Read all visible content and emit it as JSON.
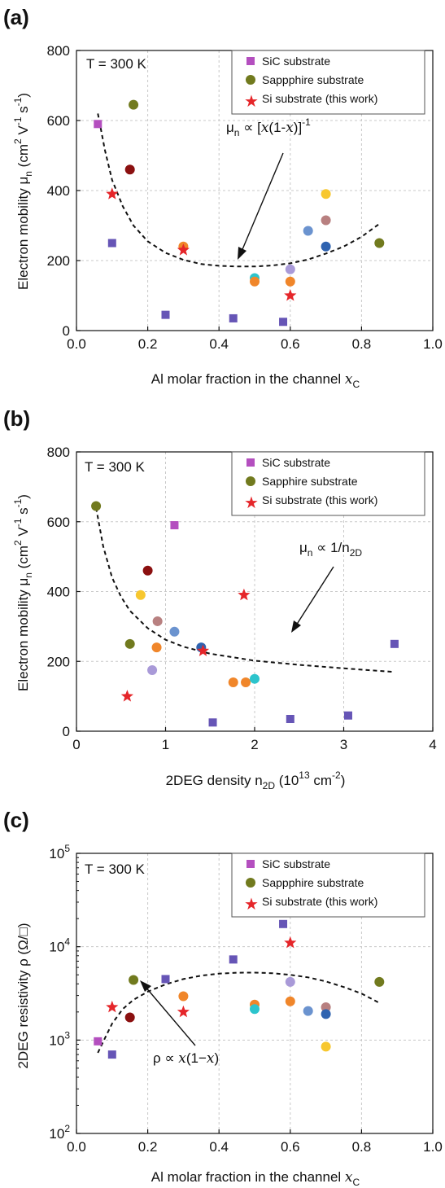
{
  "panels": [
    {
      "label": "(a)",
      "temperature": "T = 300 K",
      "ylabel_main": "Electron mobility μ",
      "ylabel_sub": "n",
      "ylabel_unit": " (cm",
      "ylabel_sup1": "2",
      "ylabel_mid": " V",
      "ylabel_sup2": "-1",
      "ylabel_mid2": " s",
      "ylabel_sup3": "-1",
      "ylabel_end": ")",
      "xlabel_main": "Al molar fraction in the channel ",
      "xlabel_var": "x",
      "xlabel_sub": "C",
      "legend": [
        "SiC substrate",
        "Sappphire substrate",
        "Si substrate (this work)"
      ],
      "annotation": "μ",
      "annotation_sub": "n",
      "annotation_rest": " ∝ [",
      "annotation_var": "x",
      "annotation_rest2": "(1-",
      "annotation_var2": "x",
      "annotation_rest3": ")]",
      "annotation_sup": "-1"
    },
    {
      "label": "(b)",
      "temperature": "T = 300 K",
      "ylabel_main": "Electron mobility μ",
      "ylabel_sub": "n",
      "ylabel_unit": " (cm",
      "ylabel_sup1": "2",
      "ylabel_mid": " V",
      "ylabel_sup2": "-1",
      "ylabel_mid2": " s",
      "ylabel_sup3": "-1",
      "ylabel_end": ")",
      "xlabel_main": "2DEG density n",
      "xlabel_sub": "2D",
      "xlabel_rest": " (10",
      "xlabel_sup": "13",
      "xlabel_rest2": " cm",
      "xlabel_sup2": "-2",
      "xlabel_end": ")",
      "legend": [
        "SiC substrate",
        "Sapphire substrate",
        "Si substrate (this work)"
      ],
      "annotation": "μ",
      "annotation_sub": "n",
      "annotation_rest": " ∝ 1/n",
      "annotation_sub2": "2D"
    },
    {
      "label": "(c)",
      "temperature": "T = 300 K",
      "ylabel_main": "2DEG resistivity ρ (Ω/□)",
      "xlabel_main": "Al molar fraction in the channel ",
      "xlabel_var": "x",
      "xlabel_sub": "C",
      "legend": [
        "SiC substrate",
        "Sappphire substrate",
        "Si substrate (this work)"
      ],
      "annotation": "ρ ∝ ",
      "annotation_var": "x",
      "annotation_rest": "(1−",
      "annotation_var2": "x",
      "annotation_rest2": ")"
    }
  ],
  "colors": {
    "sic": "#b44fbf",
    "sapphire": "#717a1e",
    "si": "#e5262a",
    "purple_sq": "#6655b6",
    "darkred": "#8b1010",
    "orange": "#f0862a",
    "teal": "#2cc4cc",
    "steelblue": "#6b93cf",
    "navy": "#2f63b0",
    "mauve": "#b88080",
    "gold": "#f7c72f",
    "lavender": "#a99ad8",
    "olive": "#717a1e"
  },
  "chart_data": [
    {
      "type": "scatter",
      "xlim": [
        0.0,
        1.0
      ],
      "ylim": [
        0,
        800
      ],
      "xticks": [
        "0.0",
        "0.2",
        "0.4",
        "0.6",
        "0.8",
        "1.0"
      ],
      "yticks": [
        "0",
        "200",
        "400",
        "600",
        "800"
      ],
      "xtick_values": [
        0.0,
        0.2,
        0.4,
        0.6,
        0.8,
        1.0
      ],
      "ytick_values": [
        0,
        200,
        400,
        600,
        800
      ],
      "grid": true,
      "legend_position": "top-right",
      "points": [
        {
          "x": 0.06,
          "y": 590,
          "shape": "square",
          "color": "sic"
        },
        {
          "x": 0.16,
          "y": 645,
          "shape": "circle",
          "color": "sapphire"
        },
        {
          "x": 0.15,
          "y": 460,
          "shape": "circle",
          "color": "darkred"
        },
        {
          "x": 0.1,
          "y": 390,
          "shape": "star",
          "color": "si"
        },
        {
          "x": 0.1,
          "y": 250,
          "shape": "square",
          "color": "purple_sq"
        },
        {
          "x": 0.3,
          "y": 240,
          "shape": "circle",
          "color": "orange"
        },
        {
          "x": 0.3,
          "y": 230,
          "shape": "star",
          "color": "si"
        },
        {
          "x": 0.25,
          "y": 45,
          "shape": "square",
          "color": "purple_sq"
        },
        {
          "x": 0.44,
          "y": 35,
          "shape": "square",
          "color": "purple_sq"
        },
        {
          "x": 0.58,
          "y": 25,
          "shape": "square",
          "color": "purple_sq"
        },
        {
          "x": 0.5,
          "y": 150,
          "shape": "circle",
          "color": "teal"
        },
        {
          "x": 0.5,
          "y": 140,
          "shape": "circle",
          "color": "orange"
        },
        {
          "x": 0.6,
          "y": 175,
          "shape": "circle",
          "color": "lavender"
        },
        {
          "x": 0.6,
          "y": 140,
          "shape": "circle",
          "color": "orange"
        },
        {
          "x": 0.6,
          "y": 100,
          "shape": "star",
          "color": "si"
        },
        {
          "x": 0.65,
          "y": 285,
          "shape": "circle",
          "color": "steelblue"
        },
        {
          "x": 0.7,
          "y": 390,
          "shape": "circle",
          "color": "gold"
        },
        {
          "x": 0.7,
          "y": 315,
          "shape": "circle",
          "color": "mauve"
        },
        {
          "x": 0.7,
          "y": 240,
          "shape": "circle",
          "color": "navy"
        },
        {
          "x": 0.85,
          "y": 250,
          "shape": "circle",
          "color": "olive"
        }
      ],
      "fit_curve": {
        "x": [
          0.06,
          0.08,
          0.1,
          0.13,
          0.16,
          0.2,
          0.25,
          0.3,
          0.35,
          0.4,
          0.45,
          0.5,
          0.55,
          0.6,
          0.65,
          0.7,
          0.75,
          0.8,
          0.85
        ],
        "y": [
          620,
          515,
          430,
          355,
          300,
          255,
          222,
          202,
          190,
          185,
          183,
          183,
          186,
          192,
          203,
          220,
          240,
          268,
          305
        ]
      }
    },
    {
      "type": "scatter",
      "xlim": [
        0,
        4
      ],
      "ylim": [
        0,
        800
      ],
      "xticks": [
        "0",
        "1",
        "2",
        "3",
        "4"
      ],
      "yticks": [
        "0",
        "200",
        "400",
        "600",
        "800"
      ],
      "xtick_values": [
        0,
        1,
        2,
        3,
        4
      ],
      "ytick_values": [
        0,
        200,
        400,
        600,
        800
      ],
      "grid": true,
      "legend_position": "top-right",
      "points": [
        {
          "x": 0.22,
          "y": 645,
          "shape": "circle",
          "color": "sapphire"
        },
        {
          "x": 1.1,
          "y": 590,
          "shape": "square",
          "color": "sic"
        },
        {
          "x": 0.8,
          "y": 460,
          "shape": "circle",
          "color": "darkred"
        },
        {
          "x": 0.72,
          "y": 390,
          "shape": "circle",
          "color": "gold"
        },
        {
          "x": 0.91,
          "y": 315,
          "shape": "circle",
          "color": "mauve"
        },
        {
          "x": 1.1,
          "y": 285,
          "shape": "circle",
          "color": "steelblue"
        },
        {
          "x": 0.6,
          "y": 250,
          "shape": "circle",
          "color": "olive"
        },
        {
          "x": 0.9,
          "y": 240,
          "shape": "circle",
          "color": "orange"
        },
        {
          "x": 1.4,
          "y": 240,
          "shape": "circle",
          "color": "navy"
        },
        {
          "x": 1.42,
          "y": 230,
          "shape": "star",
          "color": "si"
        },
        {
          "x": 1.88,
          "y": 390,
          "shape": "star",
          "color": "si"
        },
        {
          "x": 0.85,
          "y": 175,
          "shape": "circle",
          "color": "lavender"
        },
        {
          "x": 0.57,
          "y": 100,
          "shape": "star",
          "color": "si"
        },
        {
          "x": 1.76,
          "y": 140,
          "shape": "circle",
          "color": "orange"
        },
        {
          "x": 1.9,
          "y": 140,
          "shape": "circle",
          "color": "orange"
        },
        {
          "x": 2.0,
          "y": 150,
          "shape": "circle",
          "color": "teal"
        },
        {
          "x": 1.53,
          "y": 25,
          "shape": "square",
          "color": "purple_sq"
        },
        {
          "x": 2.4,
          "y": 35,
          "shape": "square",
          "color": "purple_sq"
        },
        {
          "x": 3.05,
          "y": 45,
          "shape": "square",
          "color": "purple_sq"
        },
        {
          "x": 3.57,
          "y": 250,
          "shape": "square",
          "color": "purple_sq"
        }
      ],
      "fit_curve": {
        "x": [
          0.22,
          0.3,
          0.4,
          0.5,
          0.6,
          0.8,
          1.0,
          1.2,
          1.5,
          2.0,
          2.5,
          3.0,
          3.55
        ],
        "y": [
          640,
          530,
          440,
          385,
          345,
          295,
          262,
          242,
          222,
          202,
          190,
          180,
          170
        ]
      }
    },
    {
      "type": "scatter",
      "xlim": [
        0.0,
        1.0
      ],
      "ylim": [
        100,
        100000
      ],
      "yscale": "log",
      "xticks": [
        "0.0",
        "0.2",
        "0.4",
        "0.6",
        "0.8",
        "1.0"
      ],
      "xtick_values": [
        0.0,
        0.2,
        0.4,
        0.6,
        0.8,
        1.0
      ],
      "ytick_values": [
        100,
        1000,
        10000,
        100000
      ],
      "ytick_base": "10",
      "ytick_exps": [
        "2",
        "3",
        "4",
        "5"
      ],
      "grid": true,
      "legend_position": "top-right",
      "points": [
        {
          "x": 0.06,
          "y": 970,
          "shape": "square",
          "color": "sic"
        },
        {
          "x": 0.1,
          "y": 700,
          "shape": "square",
          "color": "purple_sq"
        },
        {
          "x": 0.1,
          "y": 2250,
          "shape": "star",
          "color": "si"
        },
        {
          "x": 0.15,
          "y": 1750,
          "shape": "circle",
          "color": "darkred"
        },
        {
          "x": 0.16,
          "y": 4400,
          "shape": "circle",
          "color": "sapphire"
        },
        {
          "x": 0.25,
          "y": 4500,
          "shape": "square",
          "color": "purple_sq"
        },
        {
          "x": 0.3,
          "y": 2950,
          "shape": "circle",
          "color": "orange"
        },
        {
          "x": 0.3,
          "y": 2000,
          "shape": "star",
          "color": "si"
        },
        {
          "x": 0.44,
          "y": 7300,
          "shape": "square",
          "color": "purple_sq"
        },
        {
          "x": 0.5,
          "y": 2400,
          "shape": "circle",
          "color": "orange"
        },
        {
          "x": 0.5,
          "y": 2150,
          "shape": "circle",
          "color": "teal"
        },
        {
          "x": 0.58,
          "y": 17500,
          "shape": "square",
          "color": "purple_sq"
        },
        {
          "x": 0.6,
          "y": 11000,
          "shape": "star",
          "color": "si"
        },
        {
          "x": 0.6,
          "y": 4200,
          "shape": "circle",
          "color": "lavender"
        },
        {
          "x": 0.6,
          "y": 2600,
          "shape": "circle",
          "color": "orange"
        },
        {
          "x": 0.65,
          "y": 2050,
          "shape": "circle",
          "color": "steelblue"
        },
        {
          "x": 0.7,
          "y": 2250,
          "shape": "circle",
          "color": "mauve"
        },
        {
          "x": 0.7,
          "y": 1900,
          "shape": "circle",
          "color": "navy"
        },
        {
          "x": 0.7,
          "y": 850,
          "shape": "circle",
          "color": "gold"
        },
        {
          "x": 0.85,
          "y": 4200,
          "shape": "circle",
          "color": "olive"
        }
      ],
      "fit_curve": {
        "x": [
          0.06,
          0.08,
          0.1,
          0.13,
          0.16,
          0.2,
          0.25,
          0.3,
          0.35,
          0.4,
          0.45,
          0.5,
          0.55,
          0.6,
          0.65,
          0.7,
          0.75,
          0.8,
          0.85
        ],
        "y": [
          730,
          1050,
          1500,
          2150,
          2700,
          3300,
          3950,
          4500,
          4900,
          5150,
          5270,
          5280,
          5200,
          5000,
          4700,
          4250,
          3700,
          3150,
          2500
        ]
      }
    }
  ]
}
